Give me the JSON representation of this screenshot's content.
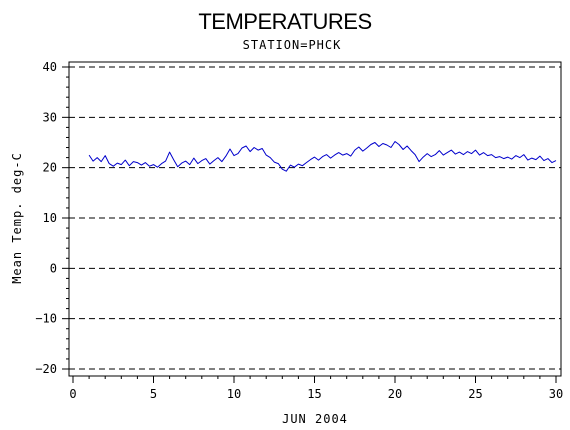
{
  "chart_data": {
    "type": "line",
    "title": "TEMPERATURES",
    "subtitle": "STATION=PHCK",
    "xlabel": "JUN 2004",
    "ylabel": "Mean Temp. deg-C",
    "xlim": [
      0,
      30
    ],
    "ylim": [
      -20,
      40
    ],
    "xticks": [
      0,
      5,
      10,
      15,
      20,
      25,
      30
    ],
    "yticks": [
      -20,
      -10,
      0,
      10,
      20,
      30,
      40
    ],
    "grid": "horizontal dashed",
    "line_color": "#0000cc",
    "series": [
      {
        "x": [
          1.0,
          1.25,
          1.5,
          1.75,
          2.0,
          2.25,
          2.5,
          2.75,
          3.0,
          3.25,
          3.5,
          3.75,
          4.0,
          4.25,
          4.5,
          4.75,
          5.0,
          5.25,
          5.5,
          5.75,
          6.0,
          6.25,
          6.5,
          6.75,
          7.0,
          7.25,
          7.5,
          7.75,
          8.0,
          8.25,
          8.5,
          8.75,
          9.0,
          9.25,
          9.5,
          9.75,
          10.0,
          10.25,
          10.5,
          10.75,
          11.0,
          11.25,
          11.5,
          11.75,
          12.0,
          12.25,
          12.5,
          12.75,
          13.0,
          13.25,
          13.5,
          13.75,
          14.0,
          14.25,
          14.5,
          14.75,
          15.0,
          15.25,
          15.5,
          15.75,
          16.0,
          16.25,
          16.5,
          16.75,
          17.0,
          17.25,
          17.5,
          17.75,
          18.0,
          18.25,
          18.5,
          18.75,
          19.0,
          19.25,
          19.5,
          19.75,
          20.0,
          20.25,
          20.5,
          20.75,
          21.0,
          21.25,
          21.5,
          21.75,
          22.0,
          22.25,
          22.5,
          22.75,
          23.0,
          23.25,
          23.5,
          23.75,
          24.0,
          24.25,
          24.5,
          24.75,
          25.0,
          25.25,
          25.5,
          25.75,
          26.0,
          26.25,
          26.5,
          26.75,
          27.0,
          27.25,
          27.5,
          27.75,
          28.0,
          28.25,
          28.5,
          28.75,
          29.0,
          29.25,
          29.5,
          29.75,
          30.0
        ],
        "y": [
          22.5,
          21.3,
          22.0,
          21.2,
          22.4,
          20.8,
          20.3,
          20.9,
          20.6,
          21.5,
          20.4,
          21.2,
          21.0,
          20.5,
          21.0,
          20.3,
          20.6,
          20.1,
          20.8,
          21.3,
          23.1,
          21.6,
          20.2,
          20.9,
          21.3,
          20.6,
          21.9,
          20.8,
          21.4,
          21.8,
          20.7,
          21.4,
          22.0,
          21.2,
          22.3,
          23.7,
          22.4,
          22.8,
          23.9,
          24.3,
          23.2,
          24.0,
          23.5,
          23.8,
          22.5,
          22.0,
          21.1,
          20.8,
          19.7,
          19.3,
          20.5,
          20.1,
          20.7,
          20.4,
          21.0,
          21.6,
          22.1,
          21.5,
          22.2,
          22.6,
          21.9,
          22.5,
          23.0,
          22.5,
          22.8,
          22.3,
          23.5,
          24.1,
          23.3,
          23.9,
          24.6,
          25.0,
          24.2,
          24.8,
          24.5,
          24.0,
          25.2,
          24.6,
          23.6,
          24.3,
          23.4,
          22.6,
          21.2,
          22.1,
          22.8,
          22.2,
          22.6,
          23.4,
          22.5,
          23.0,
          23.5,
          22.7,
          23.1,
          22.6,
          23.2,
          22.8,
          23.5,
          22.5,
          23.0,
          22.4,
          22.6,
          22.0,
          22.2,
          21.8,
          22.1,
          21.7,
          22.4,
          22.0,
          22.6,
          21.5,
          21.9,
          21.6,
          22.3,
          21.4,
          21.8,
          21.0,
          21.4
        ]
      }
    ]
  }
}
